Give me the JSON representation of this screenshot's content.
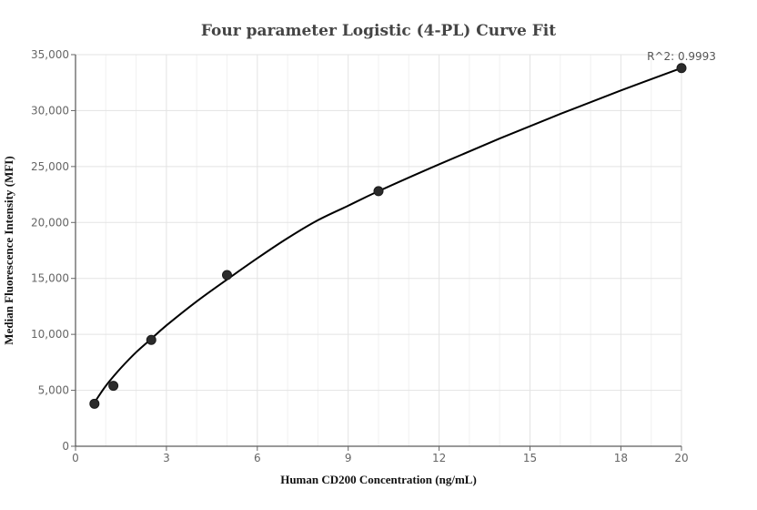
{
  "chart_data": {
    "type": "scatter",
    "title": "Four parameter Logistic (4-PL) Curve Fit",
    "xlabel": "Human CD200 Concentration (ng/mL)",
    "ylabel": "Median Fluorescence Intensity (MFI)",
    "xlim": [
      0,
      20
    ],
    "ylim": [
      0,
      35000
    ],
    "xticks": [
      0,
      3,
      6,
      9,
      12,
      15,
      18,
      20
    ],
    "yticks": [
      0,
      5000,
      10000,
      15000,
      20000,
      25000,
      30000,
      35000
    ],
    "xtick_labels": [
      "0",
      "3",
      "6",
      "9",
      "12",
      "15",
      "18",
      "20"
    ],
    "ytick_labels": [
      "0",
      "5,000",
      "10,000",
      "15,000",
      "20,000",
      "25,000",
      "30,000",
      "35,000"
    ],
    "grid": true,
    "points": {
      "x": [
        0.625,
        1.25,
        2.5,
        5,
        10,
        20
      ],
      "y": [
        3800,
        5400,
        9500,
        15300,
        22800,
        33800
      ]
    },
    "fit_curve": {
      "x": [
        0.625,
        1.0,
        1.5,
        2.0,
        2.5,
        3.0,
        4.0,
        5.0,
        6.0,
        7.0,
        8.0,
        9.0,
        10.0,
        12.0,
        14.0,
        16.0,
        18.0,
        20.0
      ],
      "y": [
        3900,
        5400,
        7000,
        8400,
        9600,
        10800,
        12950,
        14900,
        16800,
        18600,
        20200,
        21500,
        22800,
        25200,
        27500,
        29700,
        31800,
        33800
      ]
    },
    "annotation": "R^2: 0.9993"
  }
}
